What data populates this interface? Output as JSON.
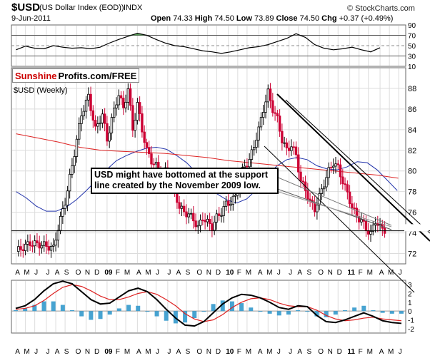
{
  "header": {
    "symbol": "$USD",
    "name": "(US Dollar Index (EOD))",
    "exchange": "INDX",
    "date": "9-Jun-2011",
    "copyright": "© StockCharts.com",
    "quote": {
      "open_label": "Open",
      "open": "74.33",
      "high_label": "High",
      "high": "74.50",
      "low_label": "Low",
      "low": "73.89",
      "close_label": "Close",
      "close": "74.50",
      "chg_label": "Chg",
      "chg": "+0.37 (+0.49%)"
    }
  },
  "branding": {
    "part1": "Sunshine",
    "part2": "Profits.com/FREE"
  },
  "colors": {
    "up": "#000000",
    "down": "#cc0033",
    "ma_short": "#2233aa",
    "ma_long": "#dd2222",
    "hist": "#3399cc",
    "rsi_fill": "#3a8a3a"
  },
  "chart_data": [
    {
      "type": "line",
      "panel": "rsi",
      "ylim": [
        10,
        90
      ],
      "tick_labels": [
        "90",
        "70",
        "50",
        "30",
        "10"
      ],
      "reference_lines": [
        70,
        50,
        30
      ],
      "x": [
        0,
        4,
        8,
        12,
        16,
        20,
        24,
        28,
        32,
        36,
        40,
        44,
        48,
        52,
        56,
        60,
        64,
        68,
        72,
        76,
        80,
        84,
        88,
        92,
        96,
        100,
        104,
        108,
        112,
        116,
        120,
        124,
        128,
        132,
        136,
        140,
        144,
        148,
        152,
        156
      ],
      "values": [
        42,
        49,
        45,
        44,
        50,
        47,
        45,
        46,
        44,
        47,
        55,
        62,
        68,
        74,
        70,
        62,
        55,
        50,
        48,
        44,
        40,
        38,
        35,
        38,
        42,
        46,
        48,
        52,
        58,
        64,
        73,
        66,
        52,
        45,
        42,
        44,
        47,
        42,
        38,
        46
      ]
    },
    {
      "type": "candlestick",
      "panel": "price",
      "title": "$USD (Weekly)",
      "ylim": [
        71,
        90
      ],
      "y_tick_labels": [
        "88",
        "86",
        "84",
        "82",
        "80",
        "78",
        "76",
        "74",
        "72"
      ],
      "x_tick_labels": [
        "A",
        "M",
        "J",
        "J",
        "A",
        "S",
        "O",
        "N",
        "D",
        "09",
        "F",
        "M",
        "A",
        "M",
        "J",
        "J",
        "A",
        "S",
        "O",
        "N",
        "D",
        "10",
        "F",
        "M",
        "A",
        "M",
        "J",
        "J",
        "A",
        "S",
        "O",
        "N",
        "D",
        "11",
        "F",
        "M",
        "A",
        "M",
        "J"
      ],
      "x_tick_weeks": [
        0,
        4,
        8,
        13,
        17,
        21,
        26,
        30,
        34,
        39,
        43,
        47,
        52,
        56,
        60,
        65,
        69,
        73,
        78,
        82,
        86,
        91,
        95,
        99,
        104,
        108,
        112,
        117,
        121,
        125,
        130,
        134,
        138,
        143,
        147,
        151,
        156,
        160,
        164
      ],
      "year_tick_labels": [
        "09",
        "10",
        "11"
      ],
      "support_level": 74.2,
      "last_close": 74.5,
      "series_short_ma": [
        78,
        77.4,
        76.6,
        76.1,
        76.1,
        76.5,
        77.2,
        78.1,
        79.1,
        80.1,
        81,
        81.5,
        81.9,
        82.2,
        82.3,
        82.1,
        81.5,
        80.8,
        79.8,
        78.8,
        77.8,
        77.2,
        76.9,
        77.3,
        78.2,
        79.5,
        80.5,
        81.1,
        81.3,
        81.1,
        80.5,
        80.2,
        80.1,
        80.4,
        80.9,
        80.8,
        80.1,
        79.1,
        78.1
      ],
      "series_long_ma": [
        83.6,
        83.2,
        82.8,
        82.3,
        82,
        81.9,
        81.8,
        81.7,
        81.5,
        81.3,
        81,
        80.8,
        80.6,
        80.4,
        80.2,
        80,
        79.8,
        79.6,
        79.3
      ],
      "trendlines": [
        {
          "from": [
            154,
            75.7
          ],
          "to": [
            45,
            83
          ]
        },
        {
          "from": [
            154,
            74.3
          ],
          "to": [
            101,
            79.9
          ]
        }
      ],
      "annotation": "USD might have bottomed at the support line created by the November 2009 low."
    },
    {
      "type": "line",
      "panel": "macd",
      "ylim": [
        -2.5,
        3.5
      ],
      "tick_labels": [
        "3",
        "2",
        "1",
        "0",
        "-1",
        "-2"
      ],
      "macd": [
        0.3,
        0.6,
        1.3,
        2.3,
        3.1,
        3.4,
        3.1,
        2.2,
        1.3,
        0.8,
        0.9,
        1.6,
        2.3,
        2.6,
        2.2,
        1.3,
        0.2,
        -0.8,
        -1.6,
        -1.7,
        -1.2,
        -0.2,
        0.8,
        1.5,
        1.9,
        1.8,
        1.5,
        1.0,
        0.4,
        0.2,
        0.6,
        0.5,
        -0.5,
        -1.2,
        -1.3,
        -1.0,
        -0.6,
        -0.2,
        -0.6,
        -1.1,
        -1.3,
        -1.4
      ],
      "signal": [
        0.2,
        0.3,
        0.6,
        1.2,
        2.0,
        2.7,
        3.0,
        2.8,
        2.3,
        1.7,
        1.3,
        1.3,
        1.6,
        2.0,
        2.2,
        1.9,
        1.3,
        0.6,
        -0.3,
        -0.9,
        -1.2,
        -1.0,
        -0.4,
        0.4,
        1.0,
        1.4,
        1.5,
        1.3,
        0.9,
        0.6,
        0.5,
        0.5,
        0.1,
        -0.5,
        -0.9,
        -1.1,
        -1.0,
        -0.8,
        -0.7,
        -0.9,
        -1.0,
        -1.1
      ],
      "histogram": [
        0.1,
        0.3,
        0.7,
        1.1,
        1.1,
        0.7,
        0.1,
        -0.6,
        -1.0,
        -0.9,
        -0.4,
        0.3,
        0.7,
        0.6,
        0.0,
        -0.6,
        -1.1,
        -1.4,
        -1.3,
        -0.8,
        0.0,
        0.8,
        1.2,
        1.1,
        0.9,
        0.4,
        0.0,
        -0.3,
        -0.5,
        -0.4,
        0.1,
        0.0,
        -0.6,
        -0.7,
        -0.4,
        0.1,
        0.4,
        0.6,
        0.1,
        -0.2,
        -0.3,
        -0.3
      ]
    }
  ]
}
